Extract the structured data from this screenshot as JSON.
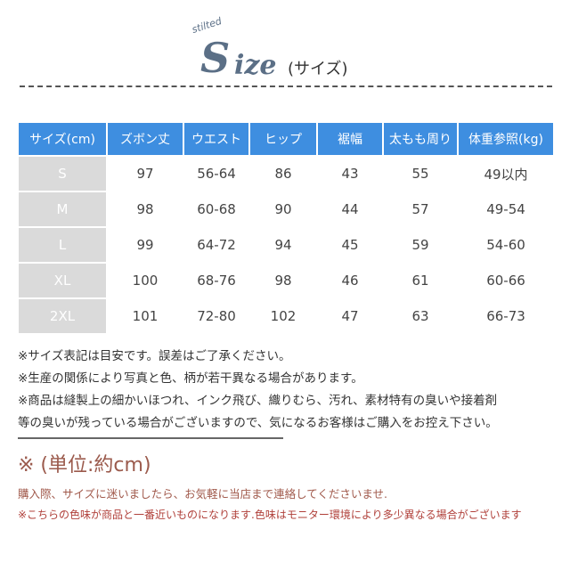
{
  "title": {
    "script": "stilted",
    "big_s": "S",
    "rest": "ize",
    "subtitle": "(サイズ)"
  },
  "table": {
    "headers": [
      "サイズ(cm)",
      "ズボン丈",
      "ウエスト",
      "ヒップ",
      "裾幅",
      "太もも周り",
      "体重参照(kg)"
    ],
    "rows": [
      [
        "S",
        "97",
        "56-64",
        "86",
        "43",
        "55",
        "49以内"
      ],
      [
        "M",
        "98",
        "60-68",
        "90",
        "44",
        "57",
        "49-54"
      ],
      [
        "L",
        "99",
        "64-72",
        "94",
        "45",
        "59",
        "54-60"
      ],
      [
        "XL",
        "100",
        "68-76",
        "98",
        "46",
        "61",
        "60-66"
      ],
      [
        "2XL",
        "101",
        "72-80",
        "102",
        "47",
        "63",
        "66-73"
      ]
    ]
  },
  "notes": [
    "※サイズ表記は目安です。誤差はご了承ください。",
    "※生産の関係により写真と色、柄が若干異なる場合があります。",
    "※商品は縫製上の細かいほつれ、インク飛び、織りむら、汚れ、素材特有の臭いや接着剤",
    "等の臭いが残っている場合がございますので、気になるお客様はご購入をお控え下さい。"
  ],
  "unit": "※ (単位:約cm)",
  "contact": "購入際、サイズに迷いましたら、お気軽に当店まで連絡してくださいませ.",
  "color_note": "※こちらの色味が商品と一番近いものになります.色味はモニター環境により多少異なる場合がございます",
  "colors": {
    "header": "#3e8ee0",
    "size_cell": "#dadada",
    "accent": "#9b5a4c"
  }
}
